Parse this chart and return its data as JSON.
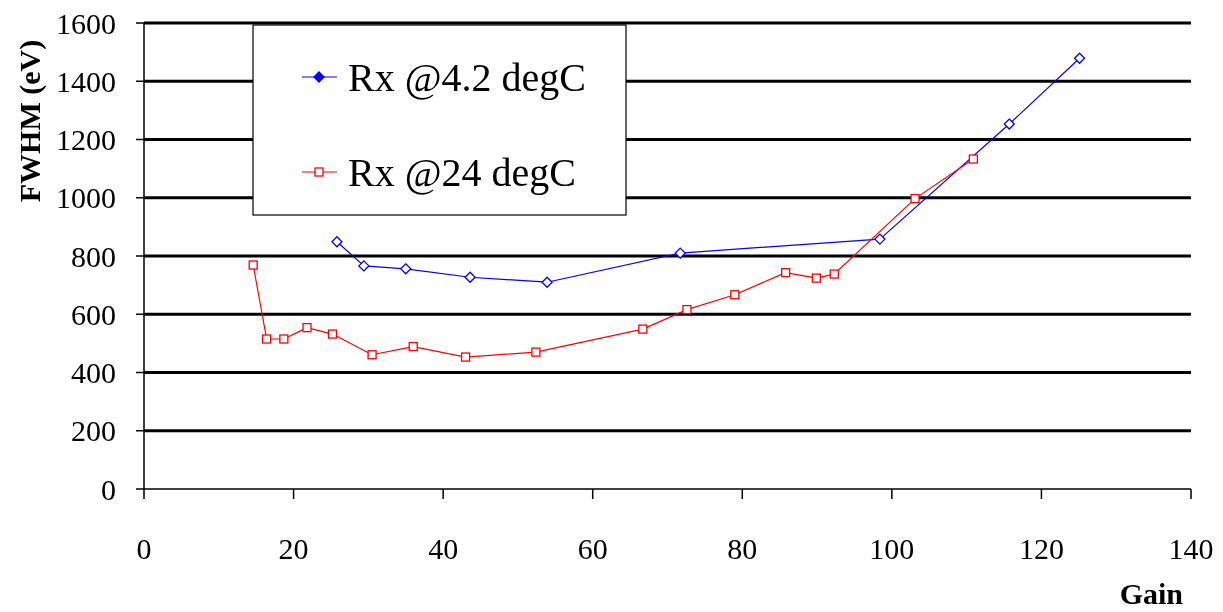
{
  "chart_data": {
    "type": "line",
    "xlabel": "Gain",
    "ylabel": "FWHM (eV)",
    "xlim": [
      0,
      140
    ],
    "xticks": [
      0,
      20,
      40,
      60,
      80,
      100,
      120,
      140
    ],
    "ylim": [
      0,
      1600
    ],
    "yticks": [
      0,
      200,
      400,
      600,
      800,
      1000,
      1200,
      1400,
      1600
    ],
    "grid": "y",
    "legend": "top left",
    "series": [
      {
        "name": "Rx @4.2 degC",
        "color": "#0000ff",
        "marker": "diamond",
        "x": [
          25.8,
          29.4,
          35.0,
          43.6,
          53.9,
          71.7,
          98.4,
          115.7,
          125.1
        ],
        "values": [
          849,
          766,
          756,
          727,
          710,
          810,
          858,
          1253,
          1479
        ]
      },
      {
        "name": "Rx @24 degC",
        "color": "#ff0000",
        "marker": "square",
        "x": [
          14.6,
          16.4,
          18.7,
          21.8,
          25.2,
          30.5,
          36.0,
          43.0,
          52.4,
          66.7,
          72.6,
          79.0,
          85.8,
          89.9,
          92.3,
          103.1,
          110.9
        ],
        "values": [
          769,
          515,
          515,
          554,
          532,
          461,
          489,
          453,
          470,
          549,
          616,
          667,
          743,
          724,
          738,
          997,
          1133
        ]
      }
    ]
  }
}
